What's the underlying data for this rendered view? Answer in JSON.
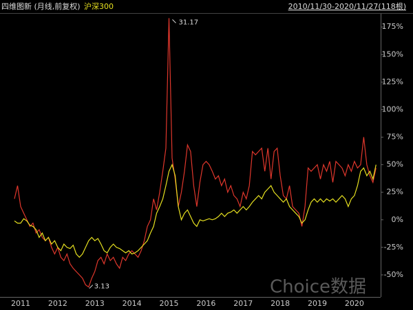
{
  "chart_data": {
    "type": "line",
    "subtitle": "2010/11/30-2020/11/27(118根)",
    "watermark": "Choice数据",
    "categories": [
      null,
      null,
      "2011",
      null,
      null,
      null,
      null,
      null,
      null,
      null,
      null,
      null,
      null,
      null,
      "2012",
      null,
      null,
      null,
      null,
      null,
      null,
      null,
      null,
      null,
      null,
      null,
      "2013",
      null,
      null,
      null,
      null,
      null,
      null,
      null,
      null,
      null,
      null,
      null,
      "2014",
      null,
      null,
      null,
      null,
      null,
      null,
      null,
      null,
      null,
      null,
      null,
      "2015",
      null,
      null,
      null,
      null,
      null,
      null,
      null,
      null,
      null,
      null,
      null,
      "2016",
      null,
      null,
      null,
      null,
      null,
      null,
      null,
      null,
      null,
      null,
      null,
      "2017",
      null,
      null,
      null,
      null,
      null,
      null,
      null,
      null,
      null,
      null,
      null,
      "2018",
      null,
      null,
      null,
      null,
      null,
      null,
      null,
      null,
      null,
      null,
      null,
      "2019",
      null,
      null,
      null,
      null,
      null,
      null,
      null,
      null,
      null,
      null,
      null,
      "2020",
      null,
      null,
      null,
      null,
      null,
      null,
      null
    ],
    "series": [
      {
        "name": "四维图新 (月线,前复权)",
        "color": "#e0372c",
        "values": [
          19,
          31,
          12,
          6,
          0,
          -6,
          -3,
          -12,
          -9,
          -16,
          -19,
          -16,
          -25,
          -31,
          -25,
          -34,
          -37,
          -31,
          -40,
          -44,
          -47,
          -50,
          -53,
          -59,
          -61,
          -53,
          -47,
          -37,
          -34,
          -40,
          -31,
          -37,
          -34,
          -40,
          -44,
          -34,
          -37,
          -31,
          -28,
          -31,
          -34,
          -28,
          -19,
          -6,
          0,
          19,
          9,
          25,
          44,
          65,
          183,
          56,
          37,
          12,
          25,
          44,
          68,
          62,
          31,
          12,
          34,
          50,
          53,
          50,
          44,
          37,
          40,
          31,
          37,
          25,
          31,
          22,
          19,
          12,
          25,
          19,
          31,
          62,
          59,
          62,
          65,
          44,
          65,
          37,
          62,
          65,
          40,
          22,
          19,
          31,
          12,
          9,
          6,
          -6,
          12,
          47,
          44,
          47,
          50,
          37,
          50,
          44,
          53,
          34,
          53,
          50,
          47,
          40,
          50,
          44,
          53,
          47,
          50,
          75,
          50,
          40,
          34,
          47
        ]
      },
      {
        "name": "沪深300",
        "color": "#e6e020",
        "values": [
          -1,
          -3,
          -3,
          1,
          -1,
          -5,
          -6,
          -9,
          -16,
          -12,
          -19,
          -16,
          -22,
          -19,
          -25,
          -28,
          -22,
          -25,
          -26,
          -23,
          -31,
          -34,
          -31,
          -25,
          -19,
          -16,
          -19,
          -17,
          -22,
          -28,
          -30,
          -25,
          -22,
          -25,
          -26,
          -28,
          -30,
          -28,
          -31,
          -30,
          -28,
          -25,
          -22,
          -19,
          -12,
          -6,
          6,
          12,
          19,
          31,
          44,
          50,
          40,
          12,
          0,
          6,
          9,
          3,
          -3,
          -6,
          0,
          -1,
          0,
          1,
          0,
          1,
          3,
          6,
          3,
          6,
          7,
          9,
          6,
          9,
          12,
          9,
          12,
          16,
          19,
          22,
          19,
          25,
          28,
          31,
          25,
          22,
          19,
          16,
          19,
          12,
          9,
          6,
          3,
          -3,
          0,
          9,
          16,
          19,
          16,
          19,
          16,
          19,
          17,
          19,
          16,
          19,
          22,
          19,
          12,
          19,
          22,
          31,
          44,
          47,
          40,
          44,
          37,
          50
        ]
      }
    ],
    "annotations": [
      31.17,
      3.13
    ],
    "ylim": [
      -70,
      187
    ],
    "yticks": [
      {
        "value": -50,
        "label": "-50%"
      },
      {
        "value": -25,
        "label": "-25%"
      },
      {
        "value": 0,
        "label": "0%"
      },
      {
        "value": 25,
        "label": "25%"
      },
      {
        "value": 50,
        "label": "50%"
      },
      {
        "value": 75,
        "label": "75%"
      },
      {
        "value": 100,
        "label": "100%"
      },
      {
        "value": 125,
        "label": "125%"
      },
      {
        "value": 150,
        "label": "150%"
      },
      {
        "value": 175,
        "label": "175%"
      }
    ],
    "grid": false
  }
}
